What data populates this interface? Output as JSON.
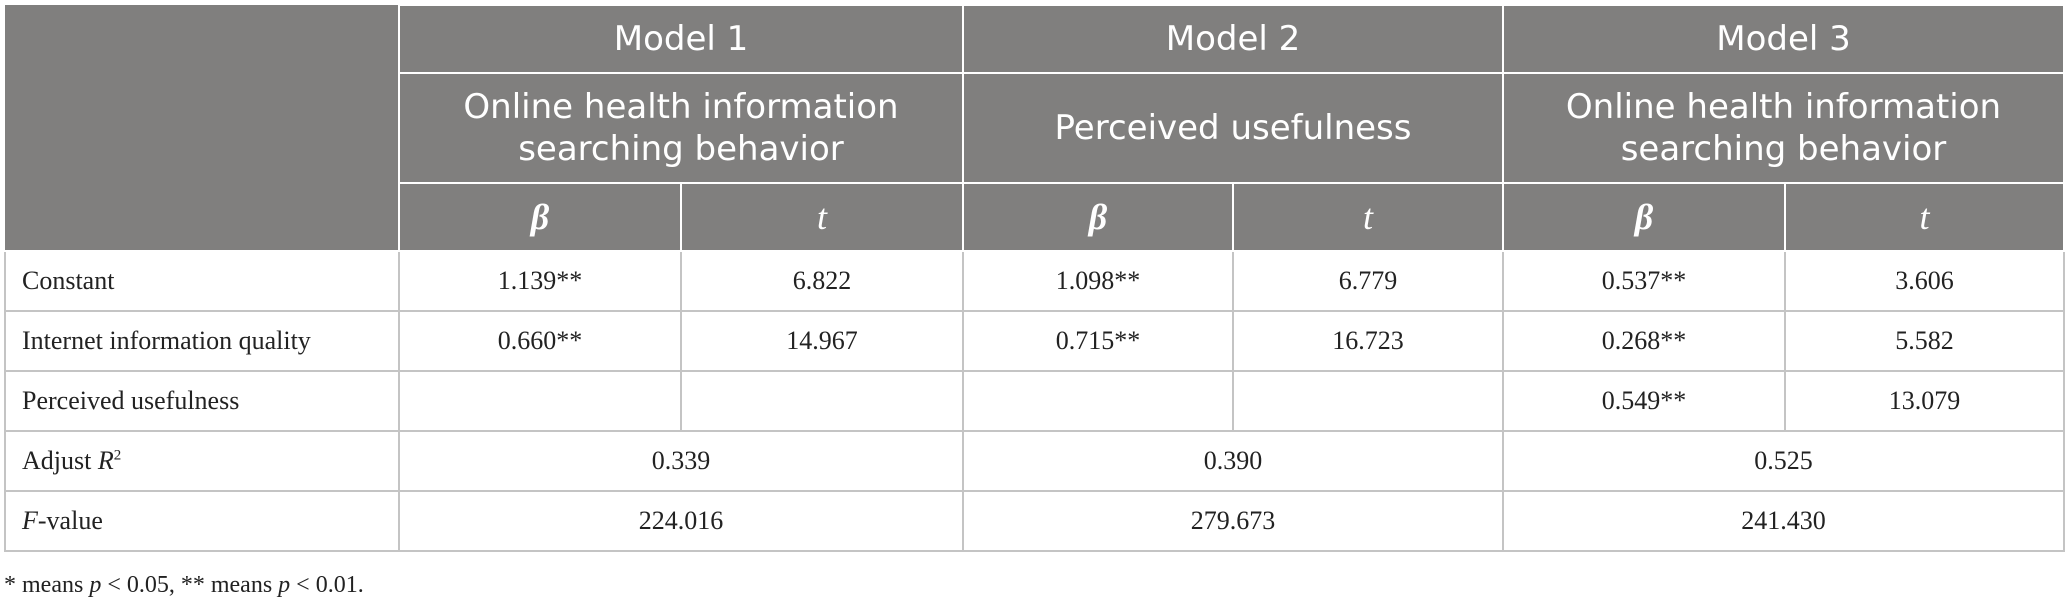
{
  "table": {
    "models": [
      {
        "name": "Model 1",
        "outcome": "Online health information searching behavior"
      },
      {
        "name": "Model 2",
        "outcome": "Perceived usefulness"
      },
      {
        "name": "Model 3",
        "outcome": "Online health information searching behavior"
      }
    ],
    "stat_headers": [
      "β",
      "t"
    ],
    "rows": [
      {
        "label": "Constant",
        "cells": [
          "1.139**",
          "6.822",
          "1.098**",
          "6.779",
          "0.537**",
          "3.606"
        ]
      },
      {
        "label": "Internet information quality",
        "cells": [
          "0.660**",
          "14.967",
          "0.715**",
          "16.723",
          "0.268**",
          "5.582"
        ]
      },
      {
        "label": "Perceived usefulness",
        "cells": [
          null,
          null,
          null,
          null,
          "0.549**",
          "13.079"
        ]
      }
    ],
    "summary_rows": [
      {
        "label_parts": [
          "Adjust ",
          "R",
          "2"
        ],
        "values": [
          "0.339",
          "0.390",
          "0.525"
        ]
      },
      {
        "label_parts": [
          "F",
          "-value"
        ],
        "values": [
          "224.016",
          "279.673",
          "241.430"
        ]
      }
    ]
  },
  "footnote": [
    "* means ",
    "p",
    " < 0.05, ** means ",
    "p",
    " < 0.01."
  ]
}
